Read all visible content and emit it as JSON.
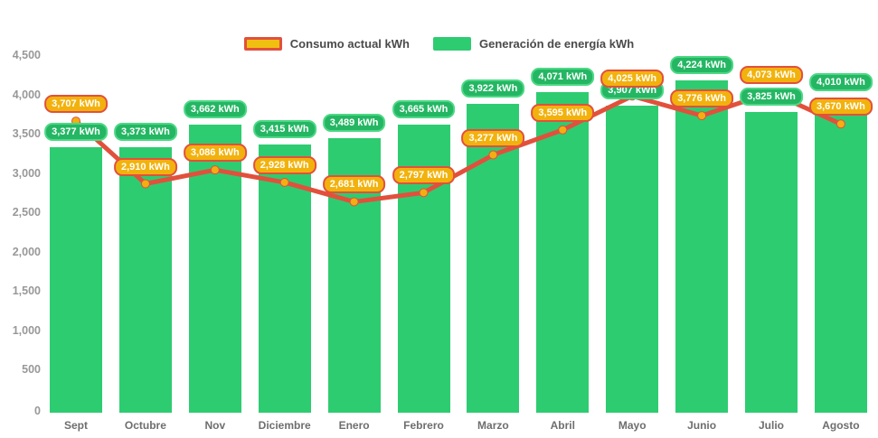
{
  "legend": {
    "consumption_label": "Consumo actual kWh",
    "generation_label": "Generación de energía kWh"
  },
  "chart_data": {
    "type": "bar",
    "title": "",
    "xlabel": "",
    "ylabel": "",
    "value_suffix": "kWh",
    "categories": [
      "Sept",
      "Octubre",
      "Nov",
      "Diciembre",
      "Enero",
      "Febrero",
      "Marzo",
      "Abril",
      "Mayo",
      "Junio",
      "Julio",
      "Agosto"
    ],
    "series": [
      {
        "name": "Generación de energía kWh",
        "type": "bar",
        "values": [
          3377,
          3373,
          3662,
          3415,
          3489,
          3665,
          3922,
          4071,
          3907,
          4224,
          3825,
          4010
        ]
      },
      {
        "name": "Consumo actual kWh",
        "type": "line",
        "values": [
          3707,
          2910,
          3086,
          2928,
          2681,
          2797,
          3277,
          3595,
          4025,
          3776,
          4073,
          3670
        ]
      }
    ],
    "ylim": [
      0,
      4500
    ],
    "y_ticks": [
      0,
      500,
      1000,
      1500,
      2000,
      2500,
      3000,
      3500,
      4000,
      4500
    ],
    "grid": false,
    "legend_position": "top-center",
    "colors": {
      "bar": "#2ecc71",
      "line": "#e2503c",
      "dot_fill": "#f3ae11",
      "generation_pill_bg": "#24b663",
      "generation_pill_border": "#4cd885",
      "consumption_pill_bg": "#f2b20d",
      "consumption_pill_border": "#e2503c",
      "legend_line_swatch_fill": "#f0c011",
      "axis_text": "#989898",
      "month_text": "#6e6e6e",
      "legend_text": "#4a4a4a"
    }
  }
}
